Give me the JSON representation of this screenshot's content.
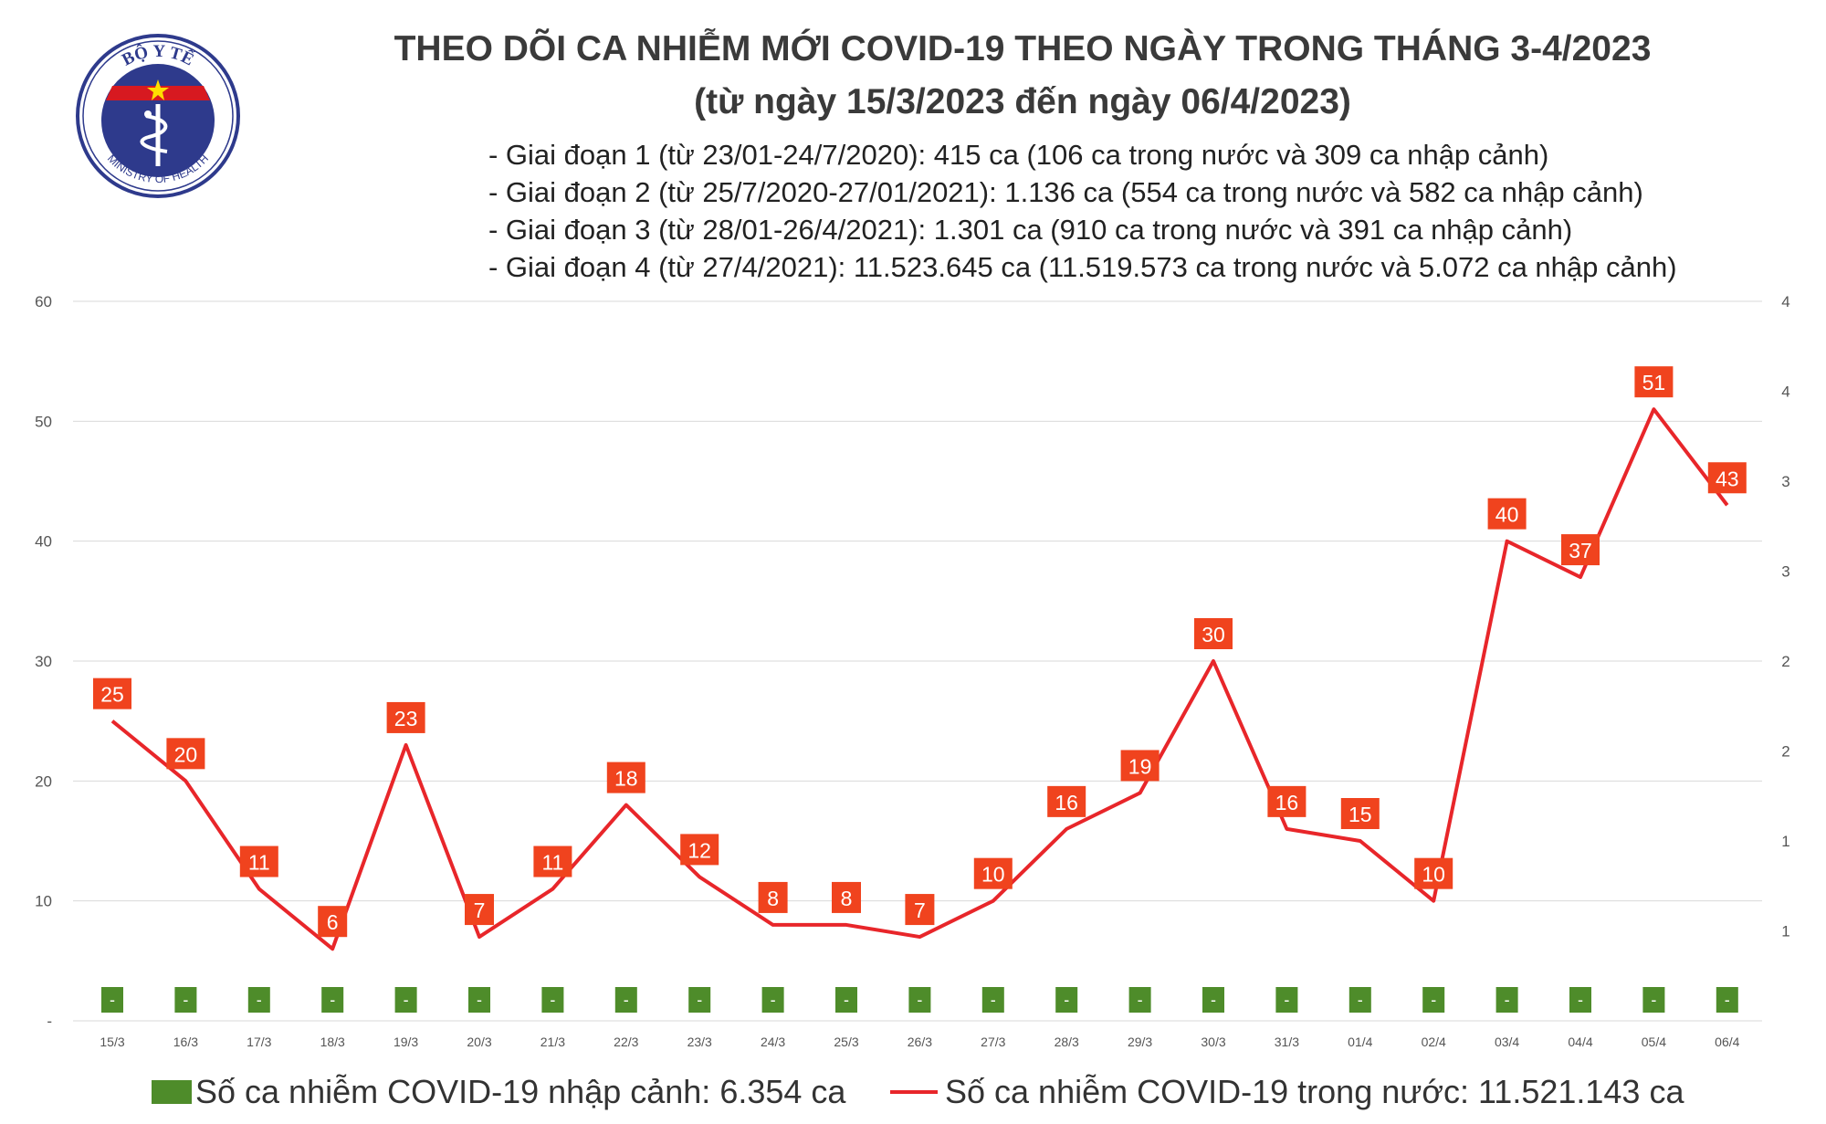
{
  "logo": {
    "top_text": "BỘ Y TẾ",
    "bottom_text": "MINISTRY OF HEALTH",
    "colors": {
      "ring": "#2e3a8c",
      "inner": "#2e3a8c",
      "red": "#d71920",
      "star": "#ffde00"
    }
  },
  "header": {
    "title": "THEO DÕI CA NHIỄM MỚI COVID-19 THEO NGÀY TRONG THÁNG 3-4/2023",
    "subtitle": "(từ ngày 15/3/2023 đến ngày 06/4/2023)"
  },
  "notes": [
    "- Giai đoạn 1 (từ 23/01-24/7/2020): 415 ca (106 ca trong nước và 309 ca nhập cảnh)",
    "- Giai đoạn 2 (từ 25/7/2020-27/01/2021): 1.136 ca (554 ca trong nước và 582 ca nhập cảnh)",
    "- Giai đoạn 3 (từ 28/01-26/4/2021): 1.301 ca (910 ca trong nước và 391 ca nhập cảnh)",
    "- Giai đoạn 4 (từ 27/4/2021): 11.523.645 ca (11.519.573 ca trong nước và 5.072 ca nhập cảnh)"
  ],
  "chart_data": {
    "type": "line",
    "categories": [
      "15/3",
      "16/3",
      "17/3",
      "18/3",
      "19/3",
      "20/3",
      "21/3",
      "22/3",
      "23/3",
      "24/3",
      "25/3",
      "26/3",
      "27/3",
      "28/3",
      "29/3",
      "30/3",
      "31/3",
      "01/4",
      "02/4",
      "03/4",
      "04/4",
      "05/4",
      "06/4"
    ],
    "series": [
      {
        "name": "Số ca nhiễm COVID-19 trong nước: 11.521.143 ca",
        "type": "line",
        "axis": "left",
        "color": "#e8262a",
        "values": [
          25,
          20,
          11,
          6,
          23,
          7,
          11,
          18,
          12,
          8,
          8,
          7,
          10,
          16,
          19,
          30,
          16,
          15,
          10,
          40,
          37,
          51,
          43
        ]
      },
      {
        "name": "Số ca nhiễm COVID-19 nhập cảnh: 6.354 ca",
        "type": "bar",
        "axis": "right",
        "color": "#4e8c2a",
        "values": [
          0,
          0,
          0,
          0,
          0,
          0,
          0,
          0,
          0,
          0,
          0,
          0,
          0,
          0,
          0,
          0,
          0,
          0,
          0,
          0,
          0,
          0,
          0
        ],
        "labels": [
          "-",
          "-",
          "-",
          "-",
          "-",
          "-",
          "-",
          "-",
          "-",
          "-",
          "-",
          "-",
          "-",
          "-",
          "-",
          "-",
          "-",
          "-",
          "-",
          "-",
          "-",
          "-",
          "-"
        ]
      }
    ],
    "y_left": {
      "ylim": [
        0,
        60
      ],
      "ticks": [
        "-",
        "10",
        "20",
        "30",
        "40",
        "50",
        "60"
      ]
    },
    "y_right": {
      "ylim": [
        0,
        4
      ],
      "ticks": [
        "1",
        "1",
        "2",
        "2",
        "3",
        "3",
        "4",
        "4"
      ]
    },
    "grid": true,
    "legend_position": "bottom"
  },
  "legend": {
    "imported": "Số ca nhiễm COVID-19 nhập cảnh: 6.354 ca",
    "domestic": "Số ca nhiễm COVID-19 trong nước: 11.521.143 ca"
  }
}
